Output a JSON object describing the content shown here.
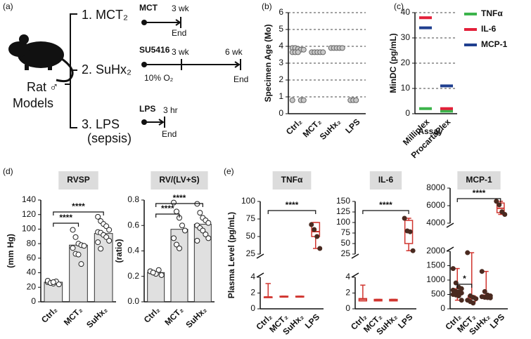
{
  "diagram": {
    "panel": "(a)",
    "rat_label": "Rat",
    "male_symbol": "♂",
    "models_label": "Models",
    "row1": {
      "title": "1. MCT₂",
      "agent": "MCT",
      "time": "3 wk",
      "end": "End"
    },
    "row2": {
      "title": "2. SuHx₂",
      "agent": "SU5416",
      "time1": "3 wk",
      "time2": "6 wk",
      "oxygen": "10% O₂",
      "end": "End"
    },
    "row3": {
      "title": "3. LPS",
      "subtitle": "(sepsis)",
      "agent": "LPS",
      "time": "3 hr",
      "end": "End"
    }
  },
  "chart_data": [
    {
      "type": "strip",
      "panel": "(b)",
      "y_label": "Specimen Age (Mo)",
      "categories": [
        "Ctrl₂",
        "MCT₂",
        "SuHx₂",
        "LPS"
      ],
      "values": [
        [
          3.9,
          3.9,
          3.85,
          3.8,
          3.8,
          3.65,
          3.65,
          3.65,
          0.8,
          0.8,
          0.8
        ],
        [
          3.65,
          3.65,
          3.65,
          3.65,
          3.65
        ],
        [
          3.9,
          3.9,
          3.9,
          3.9,
          3.9
        ],
        [
          0.8,
          0.8,
          0.8
        ]
      ],
      "color": "#c8c8c8",
      "ylim": [
        0,
        6
      ],
      "yticks": [
        0,
        1,
        2,
        3,
        4,
        5,
        6
      ],
      "grid": true
    },
    {
      "type": "dash",
      "panel": "(c)",
      "y_label": "MinDC (pg/mL)",
      "x_label": "Assay",
      "categories": [
        "Milliplex",
        "ProcartaPlex"
      ],
      "series": [
        {
          "name": "TNFα",
          "color": "#3cb44b",
          "values": [
            2,
            1
          ]
        },
        {
          "name": "IL-6",
          "color": "#e3203a",
          "values": [
            38,
            2
          ]
        },
        {
          "name": "MCP-1",
          "color": "#1f3f8f",
          "values": [
            34,
            11
          ]
        }
      ],
      "ylim": [
        0,
        40
      ],
      "yticks": [
        0,
        10,
        20,
        30,
        40
      ],
      "grid": true
    },
    {
      "type": "bar_dots",
      "panel": "(d)",
      "title": "RVSP",
      "y_label": "(mm Hg)",
      "categories": [
        "Ctrl₂",
        "MCT₂",
        "SuHx₂"
      ],
      "values": [
        27,
        78,
        94
      ],
      "points": [
        [
          27,
          26,
          25,
          28,
          24,
          29,
          26,
          27
        ],
        [
          99,
          89,
          80,
          78,
          77,
          74,
          66,
          65,
          52
        ],
        [
          117,
          111,
          107,
          104,
          99,
          96,
          95,
          92,
          89,
          84,
          82,
          73
        ]
      ],
      "color": "#e0e0e0",
      "ylim": [
        0,
        140
      ],
      "yticks": [
        0,
        20,
        40,
        60,
        80,
        100,
        120,
        140
      ],
      "annotations": [
        "****",
        "****"
      ]
    },
    {
      "type": "bar_dots",
      "title": "RV/(LV+S)",
      "y_label": "(ratio)",
      "categories": [
        "Ctrl₂",
        "MCT₂",
        "SuHx₂"
      ],
      "values": [
        0.23,
        0.57,
        0.61
      ],
      "points": [
        [
          0.24,
          0.23,
          0.22,
          0.25,
          0.21,
          0.24,
          0.23
        ],
        [
          0.78,
          0.71,
          0.66,
          0.6,
          0.56,
          0.5,
          0.45,
          0.42
        ],
        [
          0.77,
          0.7,
          0.66,
          0.64,
          0.62,
          0.6,
          0.58,
          0.56,
          0.53,
          0.5,
          0.48
        ]
      ],
      "color": "#e0e0e0",
      "ylim": [
        0,
        0.8
      ],
      "yticks": [
        {
          "value": 0,
          "label": "0.0"
        },
        0.2,
        0.4,
        0.6,
        0.8
      ],
      "annotations": [
        "****",
        "****"
      ]
    },
    {
      "type": "box_broken",
      "panel": "(e)",
      "title": "TNFα",
      "y_label": "Plasma Level (pg/mL)",
      "categories": [
        "Ctrl₂",
        "MCT₂",
        "SuHx₂",
        "LPS"
      ],
      "segments": [
        {
          "ylim": [
            0,
            4
          ],
          "yticks": [
            0,
            2,
            4
          ]
        },
        {
          "ylim": [
            25,
            100
          ],
          "yticks": [
            25,
            50,
            75,
            100
          ]
        }
      ],
      "boxes": [
        {
          "min": 1.5,
          "q1": 1.5,
          "median": 1.5,
          "q3": 1.5,
          "max": 3.2
        },
        {
          "min": 1.5,
          "q1": 1.5,
          "median": 1.5,
          "q3": 1.6,
          "max": 1.6
        },
        {
          "min": 1.5,
          "q1": 1.5,
          "median": 1.5,
          "q3": 1.6,
          "max": 1.6
        },
        {
          "min": 33,
          "q1": 50,
          "median": 57,
          "q3": 70,
          "max": 70
        }
      ],
      "points": [
        [],
        [],
        [],
        [
          67,
          60,
          50,
          33
        ]
      ],
      "color": "#d0352f",
      "annotations": [
        "****"
      ]
    },
    {
      "type": "box_broken",
      "title": "IL-6",
      "categories": [
        "Ctrl₂",
        "MCT₂",
        "SuHx₂",
        "LPS"
      ],
      "segments": [
        {
          "ylim": [
            0,
            4
          ],
          "yticks": [
            0,
            2,
            4
          ]
        },
        {
          "ylim": [
            25,
            150
          ],
          "yticks": [
            25,
            50,
            75,
            100,
            125,
            150
          ]
        }
      ],
      "boxes": [
        {
          "min": 1,
          "q1": 1,
          "median": 1.2,
          "q3": 1.3,
          "max": 3
        },
        {
          "min": 1,
          "q1": 1,
          "median": 1.1,
          "q3": 1.2,
          "max": 1.2
        },
        {
          "min": 1,
          "q1": 1,
          "median": 1.1,
          "q3": 1.2,
          "max": 1.2
        },
        {
          "min": 33,
          "q1": 50,
          "median": 78,
          "q3": 105,
          "max": 110
        }
      ],
      "points": [
        [],
        [],
        [],
        [
          110,
          80,
          78,
          33
        ]
      ],
      "color": "#d0352f",
      "annotations": [
        "****"
      ]
    },
    {
      "type": "box_broken",
      "title": "MCP-1",
      "categories": [
        "Ctrl₂",
        "MCT₂",
        "SuHx₂",
        "LPS"
      ],
      "segments": [
        {
          "ylim": [
            0,
            2000
          ],
          "yticks": [
            0,
            500,
            1000,
            1500,
            2000
          ]
        },
        {
          "ylim": [
            4000,
            8000
          ],
          "yticks": [
            4000,
            6000,
            8000
          ]
        }
      ],
      "boxes": [
        {
          "min": 300,
          "q1": 480,
          "median": 580,
          "q3": 700,
          "max": 1400
        },
        {
          "min": 200,
          "q1": 250,
          "median": 350,
          "q3": 450,
          "max": 1950
        },
        {
          "min": 380,
          "q1": 400,
          "median": 420,
          "q3": 480,
          "max": 1300
        },
        {
          "min": 5000,
          "q1": 5200,
          "median": 5700,
          "q3": 6300,
          "max": 6500
        }
      ],
      "points": [
        [
          1400,
          900,
          750,
          700,
          650,
          600,
          580,
          550,
          500,
          480,
          450,
          300
        ],
        [
          1950,
          450,
          400,
          350,
          300,
          250,
          200
        ],
        [
          1300,
          600,
          480,
          450,
          420,
          400,
          390,
          380
        ],
        [
          6500,
          6100,
          5300,
          5000
        ]
      ],
      "color": "#d0352f",
      "annotations": [
        "*",
        "****"
      ]
    }
  ]
}
